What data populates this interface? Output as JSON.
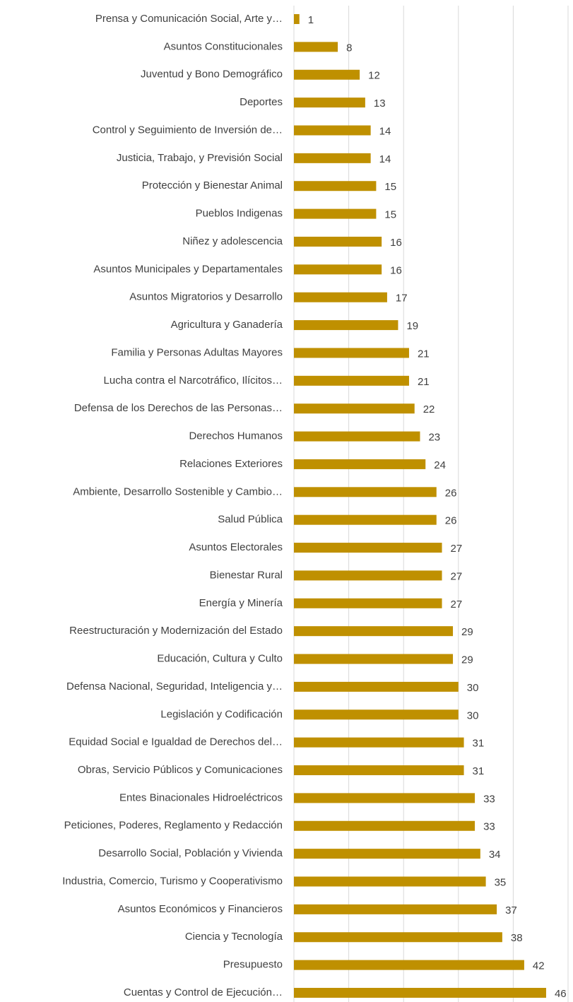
{
  "chart_data": {
    "type": "barh",
    "categories": [
      "Prensa y Comunicación Social, Arte y…",
      "Asuntos Constitucionales",
      "Juventud y Bono Demográfico",
      "Deportes",
      "Control y Seguimiento de Inversión de…",
      "Justicia, Trabajo, y Previsión Social",
      "Protección y Bienestar Animal",
      "Pueblos Indigenas",
      "Niñez y adolescencia",
      "Asuntos Municipales y Departamentales",
      "Asuntos Migratorios y Desarrollo",
      "Agricultura y Ganadería",
      "Familia y Personas Adultas Mayores",
      "Lucha contra el Narcotráfico, Ilícitos…",
      "Defensa de los Derechos de las Personas…",
      "Derechos Humanos",
      "Relaciones Exteriores",
      "Ambiente, Desarrollo Sostenible y Cambio…",
      "Salud Pública",
      "Asuntos Electorales",
      "Bienestar Rural",
      "Energía y Minería",
      "Reestructuración y Modernización del Estado",
      "Educación, Cultura y Culto",
      "Defensa Nacional, Seguridad, Inteligencia y…",
      "Legislación y Codificación",
      "Equidad Social e Igualdad de Derechos del…",
      "Obras, Servicio Públicos y Comunicaciones",
      "Entes Binacionales Hidroeléctricos",
      "Peticiones, Poderes, Reglamento y Redacción",
      "Desarrollo Social, Población y Vivienda",
      "Industria, Comercio, Turismo y Cooperativismo",
      "Asuntos Económicos y Financieros",
      "Ciencia y Tecnología",
      "Presupuesto",
      "Cuentas y Control de Ejecución…"
    ],
    "values": [
      1,
      8,
      12,
      13,
      14,
      14,
      15,
      15,
      16,
      16,
      17,
      19,
      21,
      21,
      22,
      23,
      24,
      26,
      26,
      27,
      27,
      27,
      29,
      29,
      30,
      30,
      31,
      31,
      33,
      33,
      34,
      35,
      37,
      38,
      42,
      46
    ],
    "color": "#bf9000",
    "xlim": [
      0,
      50
    ],
    "xticks": [
      0,
      10,
      20,
      30,
      40,
      50
    ],
    "grid": true
  }
}
